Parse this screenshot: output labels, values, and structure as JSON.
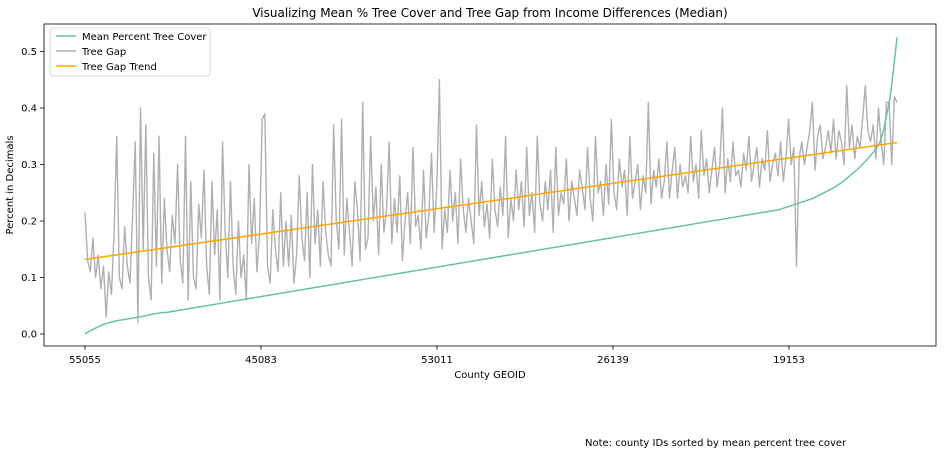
{
  "chart_data": {
    "type": "line",
    "title": "Visualizing Mean % Tree Cover and Tree Gap from Income Differences (Median)",
    "xlabel": "County GEOID",
    "ylabel": "Percent in Decimals",
    "xtick_labels": [
      "55055",
      "45083",
      "53011",
      "26139",
      "19153"
    ],
    "yticks": [
      0.0,
      0.1,
      0.2,
      0.3,
      0.4,
      0.5
    ],
    "ylim": [
      -0.026,
      0.55
    ],
    "n_points": 470,
    "legend_position": "upper-left",
    "grid": false,
    "series": [
      {
        "name": "Mean Percent Tree Cover",
        "color": "#66c2a5",
        "values": [
          0.0,
          0.004,
          0.007,
          0.01,
          0.013,
          0.016,
          0.018,
          0.02,
          0.021,
          0.023,
          0.024,
          0.025,
          0.026,
          0.027,
          0.028,
          0.029,
          0.03,
          0.031,
          0.032,
          0.034,
          0.035,
          0.036,
          0.037,
          0.038,
          0.038,
          0.039,
          0.04,
          0.041,
          0.042,
          0.043,
          0.044,
          0.045,
          0.046,
          0.047,
          0.048,
          0.049,
          0.05,
          0.051,
          0.052,
          0.053,
          0.054,
          0.055,
          0.056,
          0.057,
          0.058,
          0.059,
          0.06,
          0.061,
          0.062,
          0.063,
          0.064,
          0.065,
          0.066,
          0.067,
          0.068,
          0.069,
          0.07,
          0.071,
          0.072,
          0.073,
          0.074,
          0.075,
          0.076,
          0.077,
          0.078,
          0.079,
          0.08,
          0.081,
          0.082,
          0.083,
          0.084,
          0.085,
          0.086,
          0.087,
          0.088,
          0.089,
          0.09,
          0.091,
          0.092,
          0.093,
          0.094,
          0.095,
          0.096,
          0.097,
          0.098,
          0.099,
          0.1,
          0.101,
          0.102,
          0.103,
          0.104,
          0.105,
          0.106,
          0.107,
          0.108,
          0.109,
          0.11,
          0.111,
          0.112,
          0.113,
          0.114,
          0.115,
          0.116,
          0.117,
          0.118,
          0.119,
          0.12,
          0.121,
          0.122,
          0.123,
          0.124,
          0.125,
          0.126,
          0.127,
          0.128,
          0.129,
          0.13,
          0.131,
          0.132,
          0.133,
          0.134,
          0.135,
          0.136,
          0.137,
          0.138,
          0.139,
          0.14,
          0.141,
          0.142,
          0.143,
          0.144,
          0.145,
          0.146,
          0.147,
          0.148,
          0.149,
          0.15,
          0.151,
          0.152,
          0.153,
          0.154,
          0.155,
          0.156,
          0.157,
          0.158,
          0.159,
          0.16,
          0.161,
          0.162,
          0.163,
          0.164,
          0.165,
          0.166,
          0.167,
          0.168,
          0.169,
          0.17,
          0.171,
          0.172,
          0.173,
          0.174,
          0.175,
          0.176,
          0.177,
          0.178,
          0.179,
          0.18,
          0.181,
          0.182,
          0.183,
          0.184,
          0.185,
          0.186,
          0.187,
          0.188,
          0.189,
          0.19,
          0.191,
          0.192,
          0.193,
          0.194,
          0.195,
          0.196,
          0.197,
          0.198,
          0.199,
          0.2,
          0.201,
          0.202,
          0.203,
          0.204,
          0.205,
          0.206,
          0.207,
          0.208,
          0.209,
          0.21,
          0.211,
          0.212,
          0.213,
          0.214,
          0.215,
          0.216,
          0.217,
          0.218,
          0.219,
          0.22,
          0.222,
          0.224,
          0.226,
          0.228,
          0.23,
          0.232,
          0.234,
          0.236,
          0.238,
          0.24,
          0.243,
          0.246,
          0.249,
          0.252,
          0.255,
          0.258,
          0.262,
          0.266,
          0.27,
          0.275,
          0.28,
          0.285,
          0.29,
          0.296,
          0.302,
          0.308,
          0.315,
          0.322,
          0.33,
          0.34,
          0.36,
          0.39,
          0.42,
          0.47,
          0.525
        ]
      },
      {
        "name": "Tree Gap",
        "color": "#b0b0b0",
        "values": [
          0.215,
          0.13,
          0.11,
          0.17,
          0.1,
          0.14,
          0.08,
          0.12,
          0.03,
          0.11,
          0.07,
          0.18,
          0.35,
          0.1,
          0.08,
          0.19,
          0.12,
          0.09,
          0.21,
          0.34,
          0.02,
          0.4,
          0.15,
          0.37,
          0.1,
          0.06,
          0.32,
          0.12,
          0.35,
          0.09,
          0.24,
          0.15,
          0.11,
          0.21,
          0.16,
          0.3,
          0.13,
          0.09,
          0.35,
          0.06,
          0.27,
          0.1,
          0.08,
          0.23,
          0.17,
          0.29,
          0.12,
          0.07,
          0.27,
          0.14,
          0.22,
          0.06,
          0.34,
          0.18,
          0.1,
          0.27,
          0.12,
          0.07,
          0.2,
          0.1,
          0.14,
          0.06,
          0.3,
          0.16,
          0.24,
          0.11,
          0.18,
          0.38,
          0.39,
          0.12,
          0.09,
          0.22,
          0.15,
          0.11,
          0.25,
          0.12,
          0.2,
          0.12,
          0.21,
          0.09,
          0.14,
          0.28,
          0.17,
          0.13,
          0.25,
          0.1,
          0.3,
          0.16,
          0.22,
          0.12,
          0.27,
          0.18,
          0.14,
          0.12,
          0.37,
          0.2,
          0.15,
          0.38,
          0.14,
          0.24,
          0.18,
          0.12,
          0.27,
          0.22,
          0.13,
          0.41,
          0.15,
          0.17,
          0.35,
          0.2,
          0.26,
          0.14,
          0.3,
          0.18,
          0.22,
          0.34,
          0.16,
          0.24,
          0.18,
          0.28,
          0.13,
          0.2,
          0.25,
          0.16,
          0.33,
          0.19,
          0.21,
          0.15,
          0.29,
          0.17,
          0.21,
          0.32,
          0.18,
          0.26,
          0.45,
          0.15,
          0.22,
          0.18,
          0.29,
          0.2,
          0.25,
          0.16,
          0.31,
          0.22,
          0.18,
          0.24,
          0.2,
          0.16,
          0.37,
          0.21,
          0.27,
          0.19,
          0.23,
          0.17,
          0.31,
          0.22,
          0.19,
          0.26,
          0.21,
          0.35,
          0.17,
          0.24,
          0.2,
          0.29,
          0.22,
          0.27,
          0.19,
          0.33,
          0.21,
          0.25,
          0.18,
          0.35,
          0.23,
          0.2,
          0.27,
          0.22,
          0.29,
          0.18,
          0.33,
          0.21,
          0.25,
          0.23,
          0.31,
          0.2,
          0.27,
          0.24,
          0.21,
          0.29,
          0.26,
          0.22,
          0.33,
          0.24,
          0.2,
          0.35,
          0.25,
          0.27,
          0.21,
          0.3,
          0.23,
          0.38,
          0.25,
          0.22,
          0.31,
          0.26,
          0.29,
          0.21,
          0.35,
          0.24,
          0.27,
          0.3,
          0.22,
          0.28,
          0.25,
          0.41,
          0.23,
          0.29,
          0.26,
          0.31,
          0.24,
          0.27,
          0.34,
          0.24,
          0.29,
          0.33,
          0.24,
          0.3,
          0.26,
          0.28,
          0.25,
          0.35,
          0.27,
          0.3,
          0.24,
          0.36,
          0.28,
          0.31,
          0.25,
          0.29,
          0.33,
          0.26,
          0.3,
          0.4,
          0.25,
          0.31,
          0.27,
          0.34,
          0.28,
          0.29,
          0.26,
          0.32,
          0.29,
          0.35,
          0.27,
          0.3,
          0.33,
          0.26,
          0.31,
          0.29,
          0.36,
          0.27,
          0.3,
          0.32,
          0.28,
          0.34,
          0.27,
          0.31,
          0.38,
          0.3,
          0.33,
          0.12,
          0.31,
          0.34,
          0.3,
          0.33,
          0.36,
          0.41,
          0.29,
          0.35,
          0.37,
          0.31,
          0.33,
          0.36,
          0.32,
          0.38,
          0.31,
          0.36,
          0.34,
          0.3,
          0.44,
          0.33,
          0.37,
          0.31,
          0.35,
          0.33,
          0.38,
          0.44,
          0.36,
          0.34,
          0.37,
          0.31,
          0.4,
          0.34,
          0.3,
          0.41,
          0.41,
          0.3,
          0.42,
          0.41
        ]
      },
      {
        "name": "Tree Gap Trend",
        "color": "#ffa500",
        "values": [
          0.132,
          0.339
        ]
      }
    ]
  },
  "note": "Note: county IDs sorted by mean percent tree cover"
}
